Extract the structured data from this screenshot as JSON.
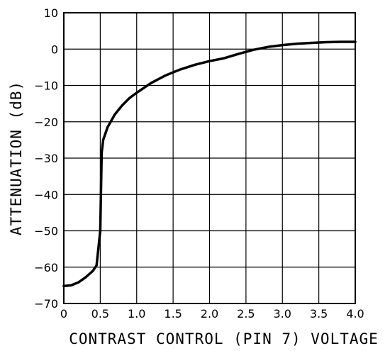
{
  "chart_data": {
    "type": "line",
    "title": "",
    "xlabel": "CONTRAST CONTROL (PIN 7) VOLTAGE",
    "ylabel": "ATTENUATION (dB)",
    "xlim": [
      0,
      4.0
    ],
    "ylim": [
      -70,
      10
    ],
    "xticks": [
      0,
      0.5,
      1.0,
      1.5,
      2.0,
      2.5,
      3.0,
      3.5,
      4.0
    ],
    "xtick_labels": [
      "0",
      "0.5",
      "1.0",
      "1.5",
      "2.0",
      "2.5",
      "3.0",
      "3.5",
      "4.0"
    ],
    "yticks": [
      10,
      0,
      -10,
      -20,
      -30,
      -40,
      -50,
      -60,
      -70
    ],
    "ytick_labels": [
      "10",
      "0",
      "−10",
      "−20",
      "−30",
      "−40",
      "−50",
      "−60",
      "−70"
    ],
    "grid": true,
    "legend": "none",
    "series": [
      {
        "x": [
          0.0,
          0.1,
          0.2,
          0.3,
          0.4,
          0.45,
          0.5,
          0.52,
          0.54,
          0.6,
          0.7,
          0.8,
          0.9,
          1.0,
          1.2,
          1.4,
          1.6,
          1.8,
          2.0,
          2.2,
          2.4,
          2.6,
          2.8,
          3.0,
          3.2,
          3.4,
          3.6,
          3.8,
          4.0
        ],
        "y": [
          -65.2,
          -65.0,
          -64.2,
          -62.8,
          -61.0,
          -59.5,
          -50.0,
          -28.5,
          -25.0,
          -21.5,
          -18.0,
          -15.5,
          -13.5,
          -12.0,
          -9.3,
          -7.2,
          -5.6,
          -4.3,
          -3.3,
          -2.5,
          -1.3,
          -0.2,
          0.6,
          1.1,
          1.5,
          1.7,
          1.9,
          2.0,
          2.0
        ]
      }
    ]
  }
}
